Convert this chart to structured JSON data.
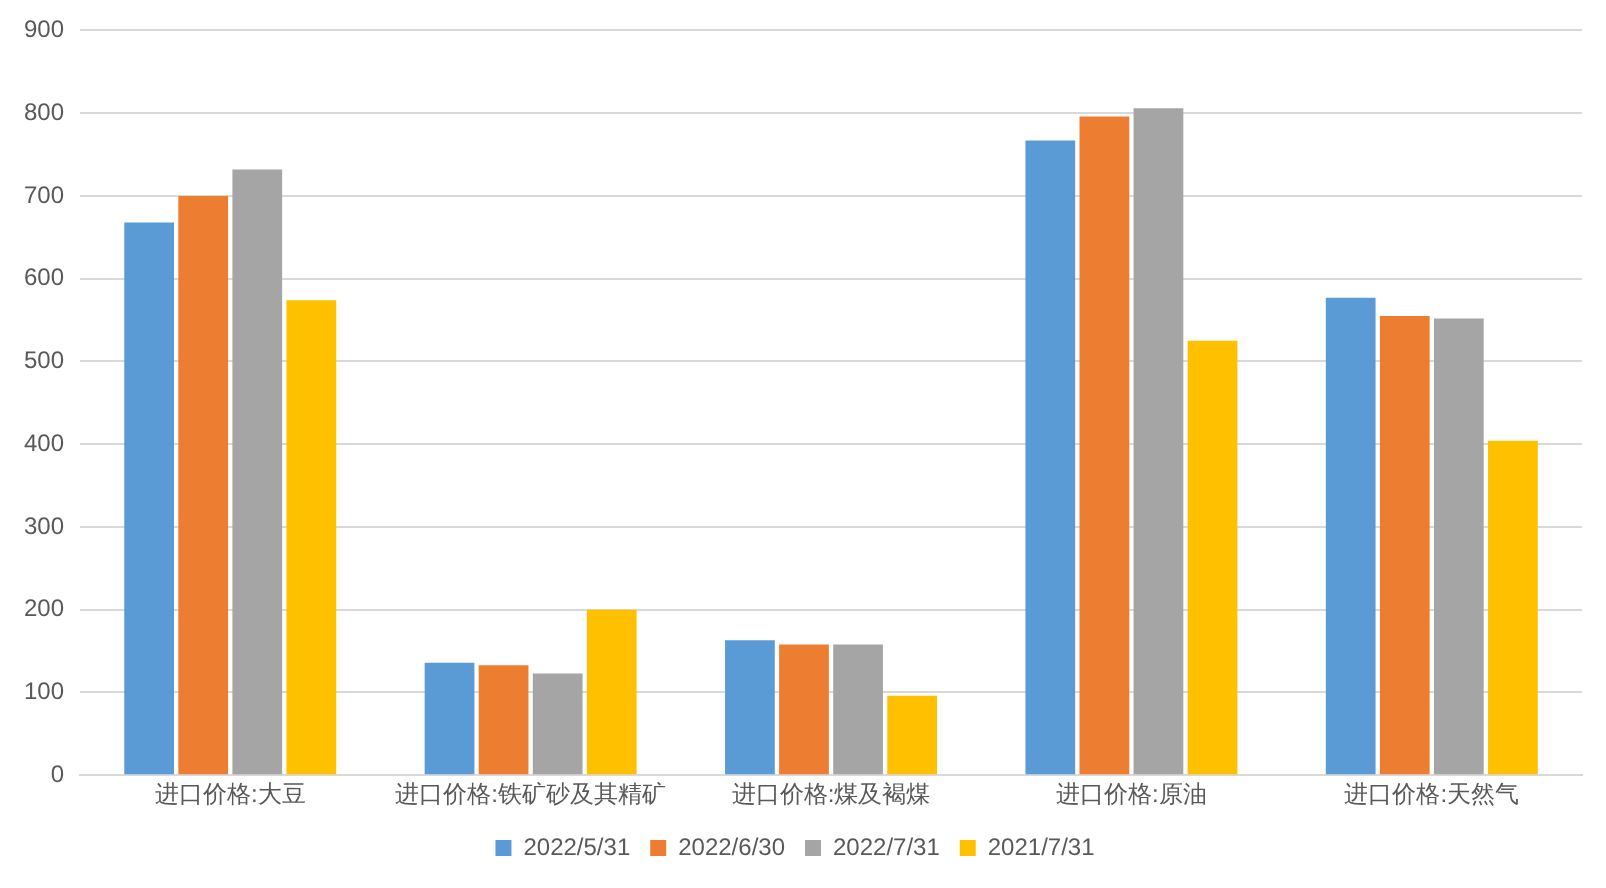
{
  "chart_data": {
    "type": "bar",
    "categories": [
      "进口价格:大豆",
      "进口价格:铁矿砂及其精矿",
      "进口价格:煤及褐煤",
      "进口价格:原油",
      "进口价格:天然气"
    ],
    "series": [
      {
        "name": "2022/5/31",
        "color": "#5b9bd5",
        "values": [
          668,
          136,
          163,
          767,
          577
        ]
      },
      {
        "name": "2022/6/30",
        "color": "#ed7d31",
        "values": [
          700,
          133,
          158,
          796,
          555
        ]
      },
      {
        "name": "2022/7/31",
        "color": "#a5a5a5",
        "values": [
          732,
          123,
          158,
          806,
          552
        ]
      },
      {
        "name": "2021/7/31",
        "color": "#ffc000",
        "values": [
          574,
          200,
          96,
          525,
          404
        ]
      }
    ],
    "ylim": [
      0,
      900
    ],
    "yticks": [
      0,
      100,
      200,
      300,
      400,
      500,
      600,
      700,
      800,
      900
    ],
    "grid": "y",
    "legend": "bottom"
  }
}
